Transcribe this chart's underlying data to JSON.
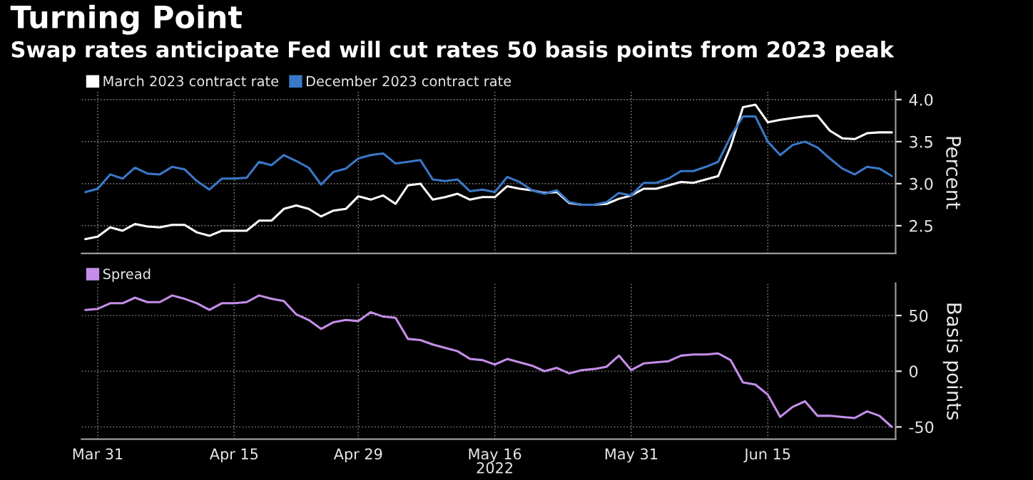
{
  "chart_data": [
    {
      "type": "line",
      "title": "Turning Point",
      "subtitle": "Swap rates anticipate Fed will cut rates 50 basis points from 2023 peak",
      "ylabel": "Percent",
      "categories": [
        null,
        null,
        null,
        null,
        null,
        null,
        null,
        null,
        null,
        null,
        null,
        null,
        null,
        null,
        null,
        null,
        null,
        null,
        null,
        null,
        null,
        null,
        null,
        null,
        null,
        null,
        null,
        null,
        null,
        null,
        null,
        null,
        null,
        null,
        null,
        null,
        null,
        null,
        null,
        null,
        null,
        null,
        null,
        null,
        null,
        null,
        null,
        null,
        null,
        null,
        null,
        null,
        null,
        null,
        null,
        null,
        null,
        null,
        null,
        null,
        null,
        null,
        null,
        null,
        null,
        null
      ],
      "series": [
        {
          "name": "March 2023 contract rate",
          "color": "#ffffff",
          "values": [
            2.34,
            2.37,
            2.48,
            2.44,
            2.52,
            2.49,
            2.48,
            2.51,
            2.51,
            2.42,
            2.38,
            2.44,
            2.44,
            2.44,
            2.56,
            2.56,
            2.7,
            2.74,
            2.7,
            2.61,
            2.68,
            2.7,
            2.85,
            2.81,
            2.86,
            2.76,
            2.98,
            3.0,
            2.81,
            2.84,
            2.88,
            2.81,
            2.84,
            2.84,
            2.97,
            2.94,
            2.92,
            2.89,
            2.9,
            2.77,
            2.75,
            2.75,
            2.76,
            2.82,
            2.86,
            2.94,
            2.94,
            2.98,
            3.02,
            3.01,
            3.05,
            3.09,
            3.44,
            3.91,
            3.94,
            3.73,
            3.76,
            3.78,
            3.8,
            3.81,
            3.63,
            3.54,
            3.53,
            3.6,
            3.61,
            3.61
          ]
        },
        {
          "name": "December 2023 contract rate",
          "color": "#3a78c8",
          "values": [
            2.9,
            2.94,
            3.11,
            3.06,
            3.19,
            3.12,
            3.11,
            3.2,
            3.17,
            3.03,
            2.93,
            3.06,
            3.06,
            3.07,
            3.26,
            3.22,
            3.34,
            3.27,
            3.19,
            2.99,
            3.14,
            3.18,
            3.3,
            3.34,
            3.36,
            3.24,
            3.26,
            3.28,
            3.05,
            3.03,
            3.05,
            2.91,
            2.93,
            2.9,
            3.08,
            3.02,
            2.92,
            2.88,
            2.92,
            2.78,
            2.75,
            2.75,
            2.78,
            2.89,
            2.86,
            3.01,
            3.01,
            3.06,
            3.15,
            3.15,
            3.2,
            3.26,
            3.56,
            3.8,
            3.8,
            3.5,
            3.34,
            3.46,
            3.5,
            3.43,
            3.3,
            3.18,
            3.11,
            3.2,
            3.18,
            3.09
          ]
        }
      ],
      "ylim": [
        2.17,
        4.1
      ],
      "yticks": [
        2.5,
        {
          "value": 3,
          "label": "3.0"
        },
        3.5,
        {
          "value": 4,
          "label": "4.0"
        }
      ],
      "grid": true,
      "legend": "top left",
      "tick_labels": "y"
    },
    {
      "type": "line",
      "ylabel": "Basis points",
      "categories": [
        null,
        "Mar 31",
        null,
        null,
        null,
        null,
        null,
        null,
        null,
        null,
        null,
        null,
        "Apr 15",
        null,
        null,
        null,
        null,
        null,
        null,
        null,
        null,
        null,
        "Apr 29",
        null,
        null,
        null,
        null,
        null,
        null,
        null,
        null,
        null,
        null,
        "May 16\n2022",
        null,
        null,
        null,
        null,
        null,
        null,
        null,
        null,
        null,
        null,
        "May 31",
        null,
        null,
        null,
        null,
        null,
        null,
        null,
        null,
        null,
        null,
        "Jun 15",
        null,
        null,
        null,
        null,
        null,
        null,
        null,
        null,
        null,
        null
      ],
      "series": [
        {
          "name": "Spread",
          "color": "#c48ee8",
          "values": [
            55,
            56,
            61,
            61,
            66,
            62,
            62,
            68,
            65,
            61,
            55,
            61,
            61,
            62,
            68,
            65,
            63,
            51,
            46,
            38,
            44,
            46,
            45,
            53,
            49,
            48,
            29,
            28,
            24,
            21,
            18,
            11,
            10,
            6,
            11,
            8,
            5,
            0,
            3,
            -2,
            1,
            2,
            4,
            14,
            1,
            7,
            8,
            9,
            14,
            15,
            15,
            16,
            10,
            -10,
            -12,
            -21,
            -41,
            -32,
            -27,
            -40,
            -40,
            -41,
            -42,
            -36,
            -40,
            -50
          ]
        }
      ],
      "ylim": [
        -61,
        79
      ],
      "yticks": [
        -50,
        0,
        50
      ],
      "grid": true,
      "legend": "top left"
    }
  ]
}
